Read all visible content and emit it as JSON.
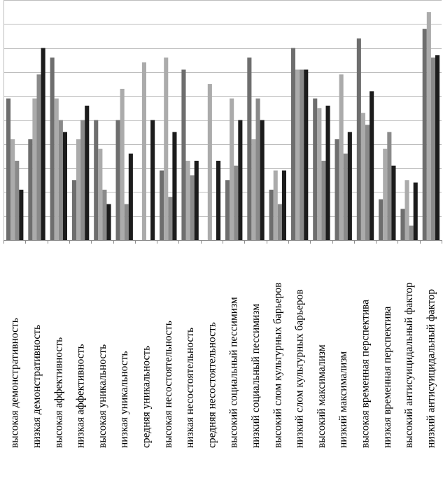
{
  "chart_data": {
    "type": "bar",
    "orientation": "vertical",
    "title": "",
    "xlabel": "",
    "ylabel": "",
    "ylim": [
      0,
      10
    ],
    "y_grid_step": 1,
    "grid": true,
    "legend": "none",
    "categories": [
      "высокая демонстративность",
      "низкая демонстративность",
      "высокая аффективность",
      "низкая аффективность",
      "высокая уникальность",
      "низкая уникальность",
      "средняя уникальность",
      "высокая несостоятельность",
      "низкая несостоятельность",
      "средняя несостоятельность",
      "высокий социальный пессимизм",
      "низкий социальный пессимизм",
      "высокий слом культурных барьеров",
      "низкий слом культурных барьеров",
      "высокий максимализм",
      "низкий максимализм",
      "высокая временная перспектива",
      "низкая временная перспектива",
      "высокий антисуицидальный фактор",
      "низкий антисуицидальный фактор"
    ],
    "series": [
      {
        "color": "#6e6e6e",
        "values": [
          5.9,
          4.2,
          7.6,
          2.5,
          5.0,
          5.0,
          0,
          2.9,
          7.1,
          0,
          2.5,
          7.6,
          2.1,
          8.0,
          5.9,
          4.2,
          8.4,
          1.7,
          1.3,
          8.8
        ]
      },
      {
        "color": "#ababab",
        "values": [
          4.2,
          5.9,
          5.9,
          4.2,
          3.8,
          6.3,
          7.4,
          7.6,
          3.3,
          6.5,
          5.9,
          4.2,
          2.9,
          7.1,
          5.5,
          6.9,
          5.3,
          3.8,
          2.5,
          9.5
        ]
      },
      {
        "color": "#8a8a8a",
        "values": [
          3.3,
          6.9,
          5.0,
          5.0,
          2.1,
          1.5,
          0,
          1.8,
          2.7,
          0,
          3.1,
          5.9,
          1.5,
          7.1,
          3.3,
          3.6,
          4.8,
          4.5,
          0.6,
          7.6
        ]
      },
      {
        "color": "#1c1c1c",
        "values": [
          2.1,
          8.0,
          4.5,
          5.6,
          1.5,
          3.6,
          5.0,
          4.5,
          3.3,
          3.3,
          5.0,
          5.0,
          2.9,
          7.1,
          5.6,
          4.5,
          6.2,
          3.1,
          2.4,
          7.7
        ]
      }
    ]
  }
}
